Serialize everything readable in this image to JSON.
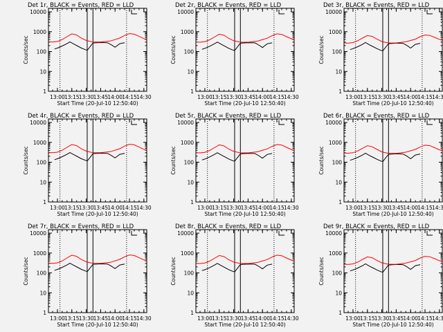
{
  "figure": {
    "background": "#f2f2f2"
  },
  "chart_data": {
    "type": "line",
    "yscale": "log",
    "ylim": [
      1,
      15000
    ],
    "ylabel": "Counts/sec",
    "xlabel": "Start Time (20-Jul-10 12:50:40)",
    "x_ticks": [
      "13:00",
      "13:15",
      "13:30",
      "13:45",
      "14:00",
      "14:15",
      "14:30"
    ],
    "x_start": "12:50:40",
    "xlim": [
      "12:50:40",
      "14:33:00"
    ],
    "y_ticks": [
      {
        "value": 1,
        "label": "1"
      },
      {
        "value": 10,
        "label": "10"
      },
      {
        "value": 100,
        "label": "100"
      },
      {
        "value": 1000,
        "label": "1000"
      },
      {
        "value": 10000,
        "label": "10000"
      }
    ],
    "legend_corner": "top-right",
    "series_style": [
      {
        "name": "Events",
        "color": "#000000"
      },
      {
        "name": "LLD",
        "color": "#ff0000"
      }
    ],
    "panels": [
      {
        "title": "Det 1r, BLACK = Events, RED = LLD",
        "solid_vlines": [
          "13:31:00",
          "13:37:00"
        ],
        "dotted_vlines": [
          "13:02:40",
          "14:12:00"
        ],
        "series": [
          {
            "name": "Events",
            "x": [
              "12:57",
              "13:00",
              "13:05",
              "13:10",
              "13:13",
              "13:17",
              "13:21",
              "13:25",
              "13:29",
              "13:31",
              "13:37",
              "13:45",
              "13:52",
              "13:56",
              "14:00",
              "14:05",
              "14:10"
            ],
            "y": [
              135,
              150,
              190,
              250,
              305,
              240,
              190,
              150,
              125,
              115,
              270,
              285,
              280,
              220,
              165,
              250,
              280
            ]
          },
          {
            "name": "LLD",
            "x": [
              "12:50:40",
              "12:55",
              "13:00",
              "13:05",
              "13:10",
              "13:15",
              "13:20",
              "13:25",
              "13:30",
              "13:37",
              "13:45",
              "13:55",
              "14:05",
              "14:10",
              "14:15",
              "14:20",
              "14:25",
              "14:30",
              "14:33"
            ],
            "y": [
              310,
              300,
              320,
              400,
              560,
              780,
              680,
              470,
              360,
              300,
              300,
              340,
              480,
              650,
              800,
              750,
              580,
              450,
              400
            ]
          }
        ]
      },
      {
        "title": "Det 2r, BLACK = Events, RED = LLD",
        "solid_vlines": [
          "13:31:00",
          "13:37:00"
        ],
        "dotted_vlines": [
          "13:02:40",
          "14:12:00"
        ],
        "series": [
          {
            "name": "Events",
            "x": [
              "12:57",
              "13:00",
              "13:05",
              "13:10",
              "13:13",
              "13:17",
              "13:21",
              "13:25",
              "13:29",
              "13:31",
              "13:37",
              "13:45",
              "13:52",
              "13:56",
              "14:00",
              "14:05",
              "14:10"
            ],
            "y": [
              130,
              145,
              185,
              245,
              300,
              235,
              185,
              145,
              120,
              112,
              265,
              280,
              275,
              215,
              160,
              245,
              275
            ]
          },
          {
            "name": "LLD",
            "x": [
              "12:50:40",
              "12:55",
              "13:00",
              "13:05",
              "13:10",
              "13:15",
              "13:20",
              "13:25",
              "13:30",
              "13:37",
              "13:45",
              "13:55",
              "14:05",
              "14:10",
              "14:15",
              "14:20",
              "14:25",
              "14:30",
              "14:33"
            ],
            "y": [
              300,
              295,
              315,
              390,
              540,
              750,
              660,
              460,
              350,
              295,
              295,
              335,
              470,
              630,
              780,
              730,
              560,
              440,
              390
            ]
          }
        ]
      },
      {
        "title": "Det 3r, BLACK = Events, RED = LLD",
        "solid_vlines": [
          "13:31:00",
          "13:37:00"
        ],
        "dotted_vlines": [
          "13:02:40",
          "14:12:00"
        ],
        "series": [
          {
            "name": "Events",
            "x": [
              "12:57",
              "13:00",
              "13:05",
              "13:10",
              "13:13",
              "13:17",
              "13:21",
              "13:25",
              "13:29",
              "13:31",
              "13:37",
              "13:45",
              "13:52",
              "13:56",
              "14:00",
              "14:05",
              "14:10"
            ],
            "y": [
              125,
              140,
              175,
              230,
              285,
              220,
              175,
              140,
              115,
              108,
              250,
              265,
              260,
              205,
              150,
              230,
              260
            ]
          },
          {
            "name": "LLD",
            "x": [
              "12:50:40",
              "12:55",
              "13:00",
              "13:05",
              "13:10",
              "13:15",
              "13:20",
              "13:25",
              "13:30",
              "13:37",
              "13:45",
              "13:55",
              "14:05",
              "14:10",
              "14:15",
              "14:20",
              "14:25",
              "14:30",
              "14:33"
            ],
            "y": [
              270,
              265,
              285,
              350,
              480,
              640,
              580,
              420,
              320,
              270,
              270,
              310,
              420,
              560,
              680,
              650,
              520,
              410,
              370
            ]
          }
        ]
      },
      {
        "title": "Det 4r, BLACK = Events, RED = LLD",
        "solid_vlines": [
          "13:31:00",
          "13:37:00"
        ],
        "dotted_vlines": [
          "13:02:40",
          "14:12:00"
        ],
        "series": [
          {
            "name": "Events",
            "x": [
              "12:57",
              "13:00",
              "13:05",
              "13:10",
              "13:13",
              "13:17",
              "13:21",
              "13:25",
              "13:29",
              "13:31",
              "13:37",
              "13:45",
              "13:52",
              "13:56",
              "14:00",
              "14:05",
              "14:10"
            ],
            "y": [
              135,
              150,
              190,
              250,
              305,
              240,
              190,
              150,
              125,
              115,
              270,
              285,
              280,
              220,
              165,
              250,
              280
            ]
          },
          {
            "name": "LLD",
            "x": [
              "12:50:40",
              "12:55",
              "13:00",
              "13:05",
              "13:10",
              "13:15",
              "13:20",
              "13:25",
              "13:30",
              "13:37",
              "13:45",
              "13:55",
              "14:05",
              "14:10",
              "14:15",
              "14:20",
              "14:25",
              "14:30",
              "14:33"
            ],
            "y": [
              310,
              300,
              320,
              400,
              560,
              780,
              680,
              470,
              360,
              300,
              300,
              340,
              480,
              650,
              800,
              750,
              580,
              450,
              400
            ]
          }
        ]
      },
      {
        "title": "Det 5r, BLACK = Events, RED = LLD",
        "solid_vlines": [
          "13:31:00",
          "13:37:00"
        ],
        "dotted_vlines": [
          "13:02:40",
          "14:12:00"
        ],
        "series": [
          {
            "name": "Events",
            "x": [
              "12:57",
              "13:00",
              "13:05",
              "13:10",
              "13:13",
              "13:17",
              "13:21",
              "13:25",
              "13:29",
              "13:31",
              "13:37",
              "13:45",
              "13:52",
              "13:56",
              "14:00",
              "14:05",
              "14:10"
            ],
            "y": [
              130,
              145,
              185,
              245,
              300,
              235,
              185,
              145,
              120,
              112,
              265,
              280,
              275,
              215,
              160,
              245,
              275
            ]
          },
          {
            "name": "LLD",
            "x": [
              "12:50:40",
              "12:55",
              "13:00",
              "13:05",
              "13:10",
              "13:15",
              "13:20",
              "13:25",
              "13:30",
              "13:37",
              "13:45",
              "13:55",
              "14:05",
              "14:10",
              "14:15",
              "14:20",
              "14:25",
              "14:30",
              "14:33"
            ],
            "y": [
              300,
              295,
              315,
              390,
              540,
              750,
              660,
              460,
              350,
              295,
              295,
              335,
              470,
              630,
              780,
              730,
              560,
              440,
              390
            ]
          }
        ]
      },
      {
        "title": "Det 6r, BLACK = Events, RED = LLD",
        "solid_vlines": [
          "13:31:00",
          "13:37:00"
        ],
        "dotted_vlines": [
          "13:02:40",
          "14:12:00"
        ],
        "series": [
          {
            "name": "Events",
            "x": [
              "12:57",
              "13:00",
              "13:05",
              "13:10",
              "13:13",
              "13:17",
              "13:21",
              "13:25",
              "13:29",
              "13:31",
              "13:37",
              "13:45",
              "13:52",
              "13:56",
              "14:00",
              "14:05",
              "14:10"
            ],
            "y": [
              125,
              140,
              175,
              230,
              285,
              220,
              175,
              140,
              115,
              108,
              250,
              265,
              260,
              205,
              150,
              230,
              260
            ]
          },
          {
            "name": "LLD",
            "x": [
              "12:50:40",
              "12:55",
              "13:00",
              "13:05",
              "13:10",
              "13:15",
              "13:20",
              "13:25",
              "13:30",
              "13:37",
              "13:45",
              "13:55",
              "14:05",
              "14:10",
              "14:15",
              "14:20",
              "14:25",
              "14:30",
              "14:33"
            ],
            "y": [
              290,
              285,
              300,
              370,
              500,
              680,
              600,
              440,
              330,
              280,
              280,
              320,
              440,
              590,
              720,
              680,
              540,
              420,
              380
            ]
          }
        ]
      },
      {
        "title": "Det 7r, BLACK = Events, RED = LLD",
        "solid_vlines": [
          "13:31:00",
          "13:37:00"
        ],
        "dotted_vlines": [
          "13:02:40",
          "14:12:00"
        ],
        "series": [
          {
            "name": "Events",
            "x": [
              "12:57",
              "13:00",
              "13:05",
              "13:10",
              "13:13",
              "13:17",
              "13:21",
              "13:25",
              "13:29",
              "13:31",
              "13:37",
              "13:45",
              "13:52",
              "13:56",
              "14:00",
              "14:05",
              "14:10"
            ],
            "y": [
              135,
              150,
              190,
              250,
              305,
              240,
              190,
              150,
              125,
              115,
              270,
              285,
              280,
              220,
              165,
              250,
              280
            ]
          },
          {
            "name": "LLD",
            "x": [
              "12:50:40",
              "12:55",
              "13:00",
              "13:05",
              "13:10",
              "13:15",
              "13:20",
              "13:25",
              "13:30",
              "13:37",
              "13:45",
              "13:55",
              "14:05",
              "14:10",
              "14:15",
              "14:20",
              "14:25",
              "14:30",
              "14:33"
            ],
            "y": [
              310,
              300,
              320,
              400,
              560,
              780,
              680,
              470,
              360,
              300,
              300,
              340,
              480,
              650,
              800,
              750,
              580,
              450,
              400
            ]
          }
        ]
      },
      {
        "title": "Det 8r, BLACK = Events, RED = LLD",
        "solid_vlines": [
          "13:31:00",
          "13:37:00"
        ],
        "dotted_vlines": [
          "13:02:40",
          "14:12:00"
        ],
        "series": [
          {
            "name": "Events",
            "x": [
              "12:57",
              "13:00",
              "13:05",
              "13:10",
              "13:13",
              "13:17",
              "13:21",
              "13:25",
              "13:29",
              "13:31",
              "13:37",
              "13:45",
              "13:52",
              "13:56",
              "14:00",
              "14:05",
              "14:10"
            ],
            "y": [
              130,
              145,
              185,
              245,
              300,
              235,
              185,
              145,
              120,
              112,
              265,
              280,
              275,
              215,
              160,
              245,
              275
            ]
          },
          {
            "name": "LLD",
            "x": [
              "12:50:40",
              "12:55",
              "13:00",
              "13:05",
              "13:10",
              "13:15",
              "13:20",
              "13:25",
              "13:30",
              "13:37",
              "13:45",
              "13:55",
              "14:05",
              "14:10",
              "14:15",
              "14:20",
              "14:25",
              "14:30",
              "14:33"
            ],
            "y": [
              300,
              295,
              315,
              390,
              540,
              750,
              660,
              460,
              350,
              295,
              295,
              335,
              470,
              630,
              780,
              730,
              560,
              440,
              390
            ]
          }
        ]
      },
      {
        "title": "Det 9r, BLACK = Events, RED = LLD",
        "solid_vlines": [
          "13:31:00",
          "13:37:00"
        ],
        "dotted_vlines": [
          "13:02:40",
          "14:12:00"
        ],
        "series": [
          {
            "name": "Events",
            "x": [
              "12:57",
              "13:00",
              "13:05",
              "13:10",
              "13:13",
              "13:17",
              "13:21",
              "13:25",
              "13:29",
              "13:31",
              "13:37",
              "13:45",
              "13:52",
              "13:56",
              "14:00",
              "14:05",
              "14:10"
            ],
            "y": [
              125,
              140,
              175,
              230,
              285,
              220,
              175,
              140,
              115,
              108,
              250,
              265,
              260,
              205,
              150,
              230,
              260
            ]
          },
          {
            "name": "LLD",
            "x": [
              "12:50:40",
              "12:55",
              "13:00",
              "13:05",
              "13:10",
              "13:15",
              "13:20",
              "13:25",
              "13:30",
              "13:37",
              "13:45",
              "13:55",
              "14:05",
              "14:10",
              "14:15",
              "14:20",
              "14:25",
              "14:30",
              "14:33"
            ],
            "y": [
              270,
              265,
              285,
              350,
              480,
              640,
              580,
              420,
              320,
              270,
              270,
              310,
              420,
              560,
              680,
              650,
              520,
              410,
              370
            ]
          }
        ]
      }
    ]
  }
}
